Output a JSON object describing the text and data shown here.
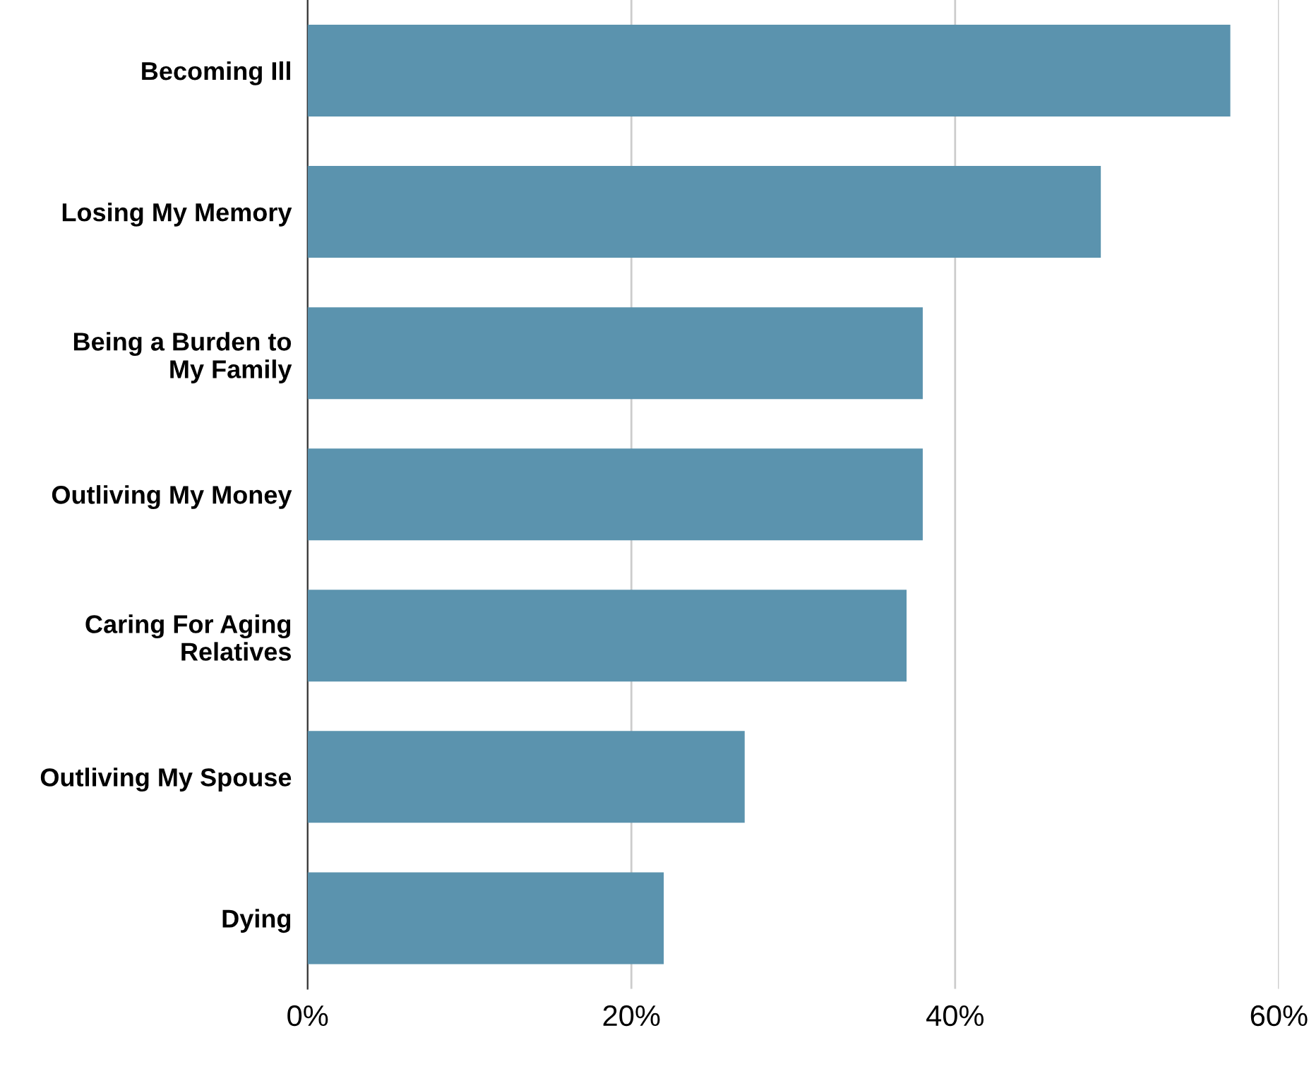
{
  "chart_data": {
    "type": "bar",
    "orientation": "horizontal",
    "categories": [
      "Becoming Ill",
      "Losing My Memory",
      "Being a Burden to\nMy Family",
      "Outliving My Money",
      "Caring For Aging\nRelatives",
      "Outliving My Spouse",
      "Dying"
    ],
    "values": [
      57,
      49,
      38,
      38,
      37,
      27,
      22
    ],
    "color": "#5b93ae",
    "xlim": [
      0,
      60
    ],
    "xticks": [
      {
        "value": 0,
        "label": "0%"
      },
      {
        "value": 20,
        "label": "20%"
      },
      {
        "value": 40,
        "label": "40%"
      },
      {
        "value": 60,
        "label": "60%"
      }
    ],
    "grid": "x",
    "legend": false
  }
}
